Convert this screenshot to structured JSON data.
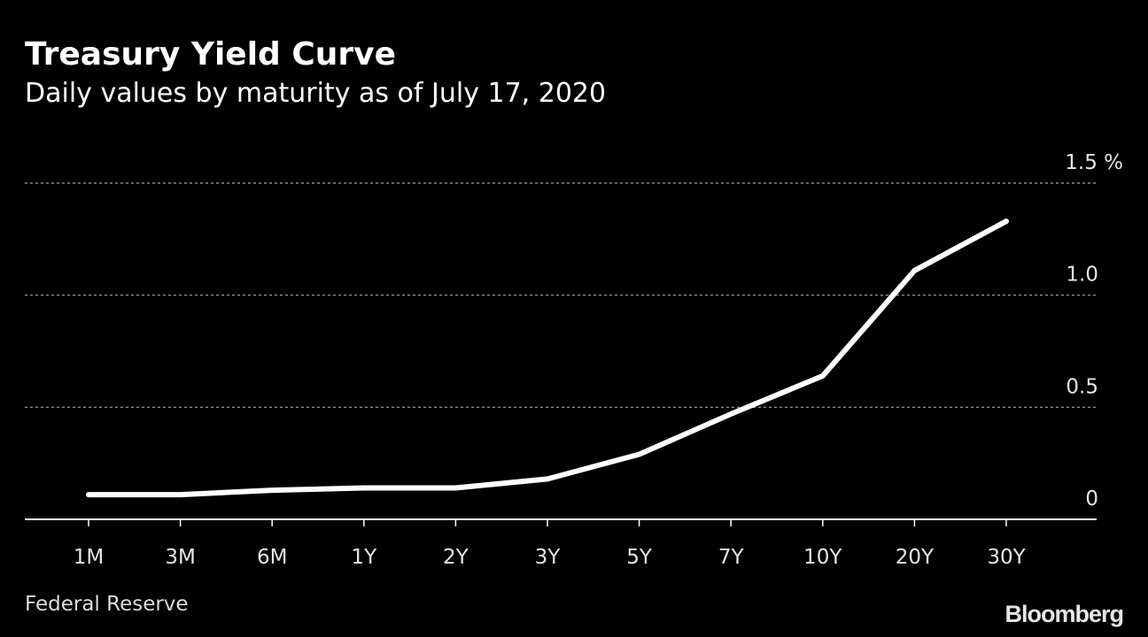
{
  "header": {
    "title": "Treasury Yield Curve",
    "subtitle": "Daily values by maturity as of July 17, 2020"
  },
  "footer": {
    "source": "Federal Reserve",
    "brand": "Bloomberg"
  },
  "colors": {
    "background": "#000000",
    "line": "#ffffff",
    "grid": "#888888",
    "text": "#ffffff"
  },
  "chart_data": {
    "type": "line",
    "title": "Treasury Yield Curve",
    "subtitle": "Daily values by maturity as of July 17, 2020",
    "categories": [
      "1M",
      "3M",
      "6M",
      "1Y",
      "2Y",
      "3Y",
      "5Y",
      "7Y",
      "10Y",
      "20Y",
      "30Y"
    ],
    "series": [
      {
        "values": [
          0.11,
          0.11,
          0.13,
          0.14,
          0.14,
          0.18,
          0.29,
          0.47,
          0.64,
          1.11,
          1.33
        ]
      }
    ],
    "ylim": [
      0,
      1.5
    ],
    "yticks": [
      0,
      0.5,
      1.0,
      1.5
    ],
    "ytick_labels": [
      "0",
      "0.5",
      "1.0",
      "1.5 %"
    ],
    "y_axis_position": "right",
    "grid": true,
    "xlabel": "",
    "ylabel": "",
    "source": "Federal Reserve"
  }
}
